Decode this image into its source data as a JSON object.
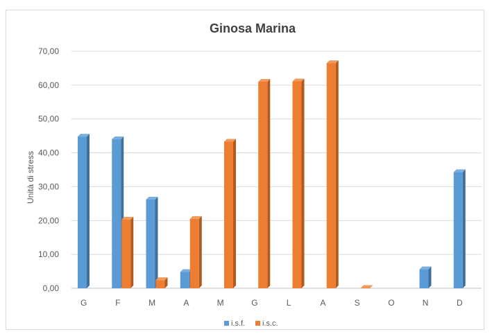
{
  "chart_data": {
    "type": "bar",
    "title": "Ginosa Marina",
    "xlabel": "",
    "ylabel": "Unità di stress",
    "categories": [
      "G",
      "F",
      "M",
      "A",
      "M",
      "G",
      "L",
      "A",
      "S",
      "O",
      "N",
      "D"
    ],
    "series": [
      {
        "name": "i.s.f.",
        "color": "#5b9bd5",
        "values": [
          44.8,
          44.0,
          26.2,
          4.8,
          0,
          0,
          0,
          0,
          0,
          0,
          5.6,
          34.3
        ]
      },
      {
        "name": "i.s.c.",
        "color": "#ed7d31",
        "values": [
          0,
          20.3,
          2.4,
          20.5,
          43.3,
          61.0,
          61.1,
          66.5,
          0.1,
          0,
          0,
          0
        ]
      }
    ],
    "ylim": [
      0,
      70
    ],
    "yticks": [
      "0,00",
      "10,00",
      "20,00",
      "30,00",
      "40,00",
      "50,00",
      "60,00",
      "70,00"
    ],
    "ytick_values": [
      0,
      10,
      20,
      30,
      40,
      50,
      60,
      70
    ],
    "grid": true,
    "legend_position": "bottom"
  }
}
